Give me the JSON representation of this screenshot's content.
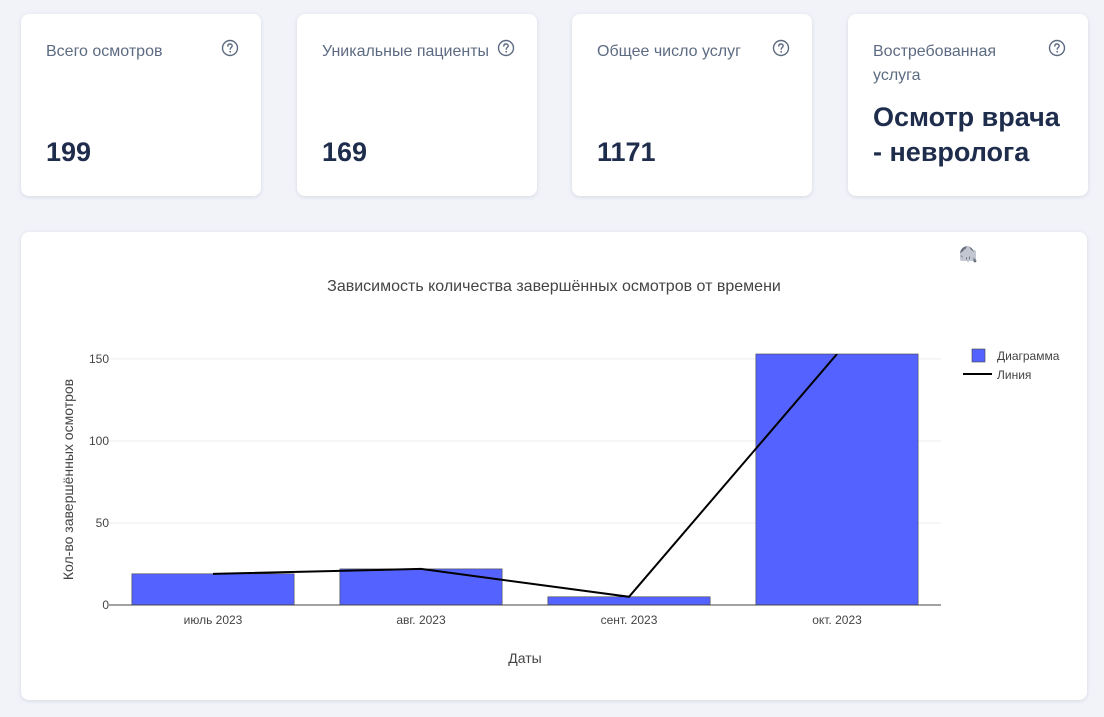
{
  "cards": [
    {
      "label": "Всего осмотров",
      "value": "199"
    },
    {
      "label": "Уникальные пациенты",
      "value": "169"
    },
    {
      "label": "Общее число услуг",
      "value": "1171"
    },
    {
      "label": "Востребованная услуга",
      "value": "Осмотр врача - невролога"
    }
  ],
  "icons": {
    "help": "question-circle-icon",
    "modebar": [
      "camera-icon",
      "zoom-icon",
      "pan-icon",
      "home-icon"
    ]
  },
  "colors": {
    "bar": "#5463ff",
    "line": "#000000",
    "accent": "#1f2d4d"
  },
  "chart_data": {
    "type": "bar",
    "title": "Зависимость количества завершённых осмотров от времени",
    "xlabel": "Даты",
    "ylabel": "Кол-во завершённых осмотров",
    "categories": [
      "июль 2023",
      "авг. 2023",
      "сент. 2023",
      "окт. 2023"
    ],
    "series": [
      {
        "name": "Диаграмма",
        "type": "bar",
        "values": [
          19,
          22,
          5,
          153
        ]
      },
      {
        "name": "Линия",
        "type": "line",
        "values": [
          19,
          22,
          5,
          153
        ]
      }
    ],
    "ylim": [
      0,
      153
    ],
    "yticks": [
      0,
      50,
      100,
      150
    ],
    "grid": true,
    "legend": "top-right"
  }
}
